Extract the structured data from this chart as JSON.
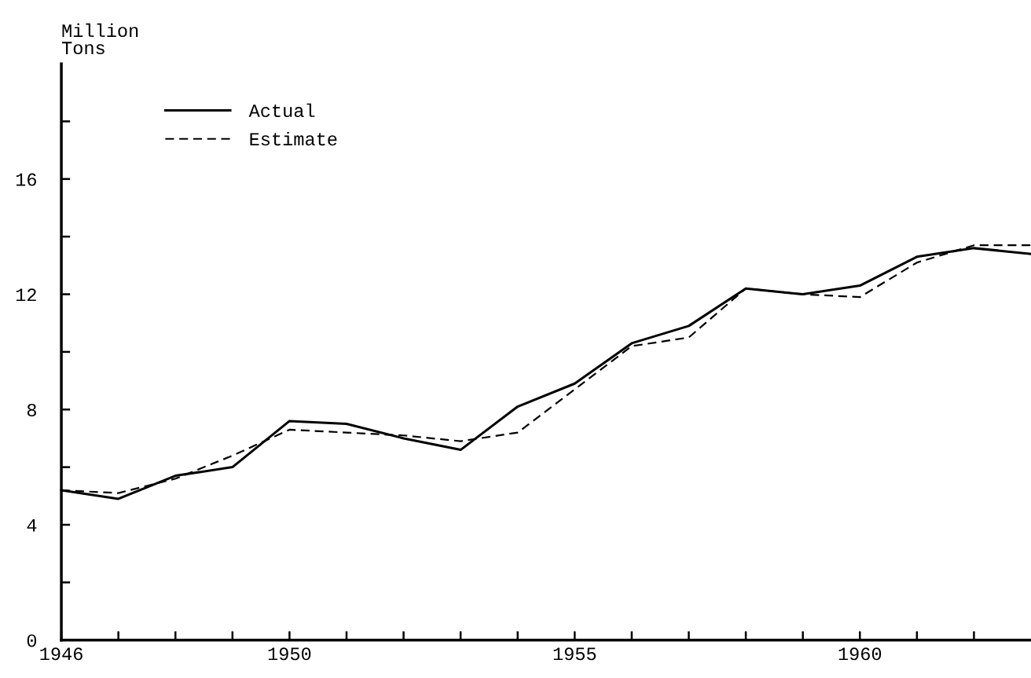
{
  "chart_data": {
    "type": "line",
    "ylabel": "Million\nTons",
    "x": [
      1946,
      1947,
      1948,
      1949,
      1950,
      1951,
      1952,
      1953,
      1954,
      1955,
      1956,
      1957,
      1958,
      1959,
      1960,
      1961,
      1962,
      1963
    ],
    "series": [
      {
        "name": "Actual",
        "color": "#000000",
        "line_style": "solid",
        "values": [
          5.2,
          4.9,
          5.7,
          6.0,
          7.6,
          7.5,
          7.0,
          6.6,
          8.1,
          8.9,
          10.3,
          10.9,
          12.2,
          12.0,
          12.3,
          13.3,
          13.6,
          13.4
        ]
      },
      {
        "name": "Estimate",
        "color": "#000000",
        "line_style": "dashed",
        "values": [
          5.2,
          5.1,
          5.6,
          6.4,
          7.3,
          7.2,
          7.1,
          6.9,
          7.2,
          8.7,
          10.2,
          10.5,
          12.2,
          12.0,
          11.9,
          13.1,
          13.7,
          13.7
        ]
      }
    ],
    "xlim": [
      1946,
      1963
    ],
    "xticks": [
      1946,
      {
        "value": 1947,
        "label": null
      },
      {
        "value": 1948,
        "label": null
      },
      {
        "value": 1949,
        "label": null
      },
      1950,
      {
        "value": 1951,
        "label": null
      },
      {
        "value": 1952,
        "label": null
      },
      {
        "value": 1953,
        "label": null
      },
      {
        "value": 1954,
        "label": null
      },
      1955,
      {
        "value": 1956,
        "label": null
      },
      {
        "value": 1957,
        "label": null
      },
      {
        "value": 1958,
        "label": null
      },
      {
        "value": 1959,
        "label": null
      },
      1960,
      {
        "value": 1961,
        "label": null
      },
      {
        "value": 1962,
        "label": null
      }
    ],
    "ylim": [
      0,
      20
    ],
    "yticks": [
      0,
      {
        "value": 2,
        "label": null
      },
      4,
      {
        "value": 6,
        "label": null
      },
      8,
      {
        "value": 10,
        "label": null
      },
      12,
      {
        "value": 14,
        "label": null
      },
      16,
      {
        "value": 18,
        "label": null
      }
    ],
    "legend": "top left",
    "grid": false,
    "marker": "none"
  }
}
